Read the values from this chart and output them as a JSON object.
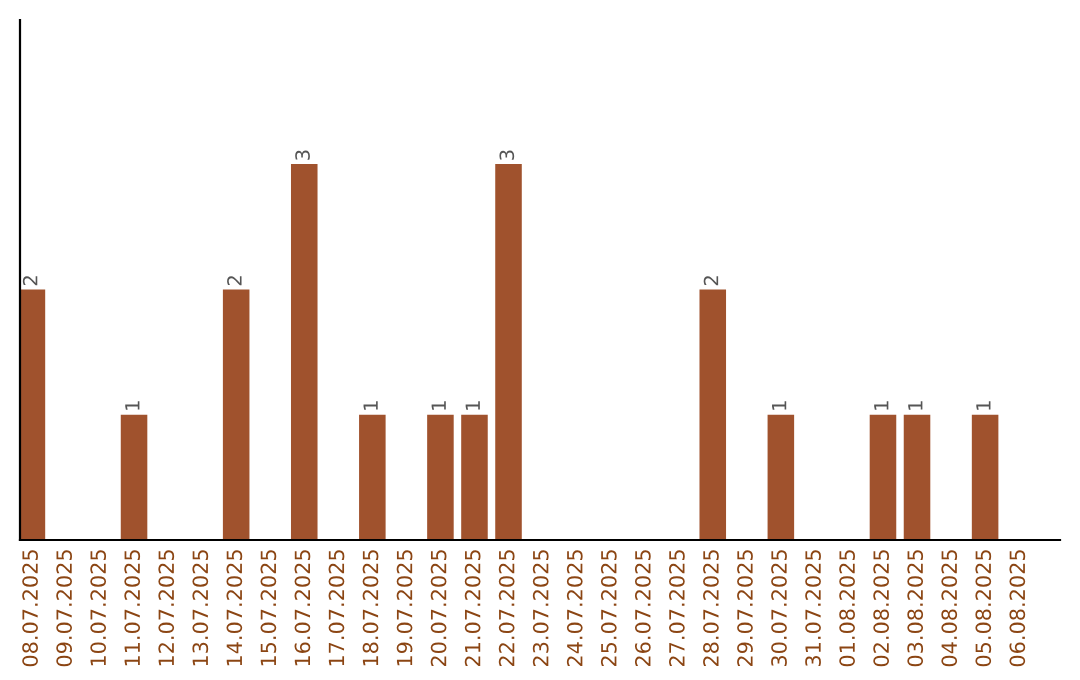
{
  "chart_data": {
    "type": "bar",
    "categories": [
      "08.07.2025",
      "09.07.2025",
      "10.07.2025",
      "11.07.2025",
      "12.07.2025",
      "13.07.2025",
      "14.07.2025",
      "15.07.2025",
      "16.07.2025",
      "17.07.2025",
      "18.07.2025",
      "19.07.2025",
      "20.07.2025",
      "21.07.2025",
      "22.07.2025",
      "23.07.2025",
      "24.07.2025",
      "25.07.2025",
      "26.07.2025",
      "27.07.2025",
      "28.07.2025",
      "29.07.2025",
      "30.07.2025",
      "31.07.2025",
      "01.08.2025",
      "02.08.2025",
      "03.08.2025",
      "04.08.2025",
      "05.08.2025",
      "06.08.2025"
    ],
    "values": [
      2,
      0,
      0,
      1,
      0,
      0,
      2,
      0,
      3,
      0,
      1,
      0,
      1,
      1,
      3,
      0,
      0,
      0,
      0,
      0,
      2,
      0,
      1,
      0,
      0,
      1,
      1,
      0,
      1,
      0
    ],
    "value_labels": [
      "2",
      null,
      null,
      "1",
      null,
      null,
      "2",
      null,
      "3",
      null,
      "1",
      null,
      "1",
      "1",
      "3",
      null,
      null,
      null,
      null,
      null,
      "2",
      null,
      "1",
      null,
      null,
      "1",
      "1",
      null,
      "1",
      null
    ],
    "color": "#a0522d",
    "ylim": [
      0,
      4.15
    ],
    "tick_labels": "x",
    "grid": false,
    "legend": false
  }
}
